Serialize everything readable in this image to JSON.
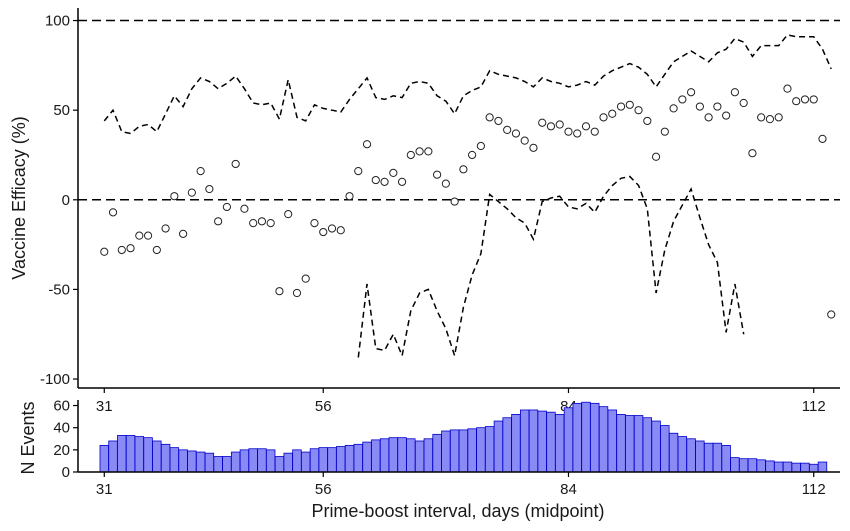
{
  "chart_data": [
    {
      "type": "scatter",
      "name": "vaccine-efficacy",
      "ylabel": "Vaccine Efficacy (%)",
      "xlim": [
        28,
        115
      ],
      "ylim": [
        -105,
        107
      ],
      "x_ticks": [
        31,
        56,
        84,
        112
      ],
      "y_ticks": [
        100,
        50,
        0,
        -50,
        -100
      ],
      "reference_lines": [
        100,
        0
      ],
      "points": [
        {
          "x": 31,
          "y": -29
        },
        {
          "x": 32,
          "y": -7
        },
        {
          "x": 33,
          "y": -28
        },
        {
          "x": 34,
          "y": -27
        },
        {
          "x": 35,
          "y": -20
        },
        {
          "x": 36,
          "y": -20
        },
        {
          "x": 37,
          "y": -28
        },
        {
          "x": 38,
          "y": -16
        },
        {
          "x": 39,
          "y": 2
        },
        {
          "x": 40,
          "y": -19
        },
        {
          "x": 41,
          "y": 4
        },
        {
          "x": 42,
          "y": 16
        },
        {
          "x": 43,
          "y": 6
        },
        {
          "x": 44,
          "y": -12
        },
        {
          "x": 45,
          "y": -4
        },
        {
          "x": 46,
          "y": 20
        },
        {
          "x": 47,
          "y": -5
        },
        {
          "x": 48,
          "y": -13
        },
        {
          "x": 49,
          "y": -12
        },
        {
          "x": 50,
          "y": -13
        },
        {
          "x": 51,
          "y": -51
        },
        {
          "x": 52,
          "y": -8
        },
        {
          "x": 53,
          "y": -52
        },
        {
          "x": 54,
          "y": -44
        },
        {
          "x": 55,
          "y": -13
        },
        {
          "x": 56,
          "y": -18
        },
        {
          "x": 57,
          "y": -16
        },
        {
          "x": 58,
          "y": -17
        },
        {
          "x": 59,
          "y": 2
        },
        {
          "x": 60,
          "y": 16
        },
        {
          "x": 61,
          "y": 31
        },
        {
          "x": 62,
          "y": 11
        },
        {
          "x": 63,
          "y": 10
        },
        {
          "x": 64,
          "y": 15
        },
        {
          "x": 65,
          "y": 10
        },
        {
          "x": 66,
          "y": 25
        },
        {
          "x": 67,
          "y": 27
        },
        {
          "x": 68,
          "y": 27
        },
        {
          "x": 69,
          "y": 14
        },
        {
          "x": 70,
          "y": 9
        },
        {
          "x": 71,
          "y": -1
        },
        {
          "x": 72,
          "y": 17
        },
        {
          "x": 73,
          "y": 25
        },
        {
          "x": 74,
          "y": 30
        },
        {
          "x": 75,
          "y": 46
        },
        {
          "x": 76,
          "y": 44
        },
        {
          "x": 77,
          "y": 39
        },
        {
          "x": 78,
          "y": 37
        },
        {
          "x": 79,
          "y": 33
        },
        {
          "x": 80,
          "y": 29
        },
        {
          "x": 81,
          "y": 43
        },
        {
          "x": 82,
          "y": 41
        },
        {
          "x": 83,
          "y": 42
        },
        {
          "x": 84,
          "y": 38
        },
        {
          "x": 85,
          "y": 37
        },
        {
          "x": 86,
          "y": 41
        },
        {
          "x": 87,
          "y": 38
        },
        {
          "x": 88,
          "y": 46
        },
        {
          "x": 89,
          "y": 48
        },
        {
          "x": 90,
          "y": 52
        },
        {
          "x": 91,
          "y": 53
        },
        {
          "x": 92,
          "y": 50
        },
        {
          "x": 93,
          "y": 44
        },
        {
          "x": 94,
          "y": 24
        },
        {
          "x": 95,
          "y": 38
        },
        {
          "x": 96,
          "y": 51
        },
        {
          "x": 97,
          "y": 56
        },
        {
          "x": 98,
          "y": 60
        },
        {
          "x": 99,
          "y": 52
        },
        {
          "x": 100,
          "y": 46
        },
        {
          "x": 101,
          "y": 52
        },
        {
          "x": 102,
          "y": 47
        },
        {
          "x": 103,
          "y": 60
        },
        {
          "x": 104,
          "y": 54
        },
        {
          "x": 105,
          "y": 26
        },
        {
          "x": 106,
          "y": 46
        },
        {
          "x": 107,
          "y": 45
        },
        {
          "x": 108,
          "y": 46
        },
        {
          "x": 109,
          "y": 62
        },
        {
          "x": 110,
          "y": 55
        },
        {
          "x": 111,
          "y": 56
        },
        {
          "x": 112,
          "y": 56
        },
        {
          "x": 113,
          "y": 34
        },
        {
          "x": 114,
          "y": -64
        }
      ],
      "upper_ci": [
        {
          "x": 31,
          "y": 44
        },
        {
          "x": 32,
          "y": 50
        },
        {
          "x": 33,
          "y": 38
        },
        {
          "x": 34,
          "y": 37
        },
        {
          "x": 35,
          "y": 41
        },
        {
          "x": 36,
          "y": 42
        },
        {
          "x": 37,
          "y": 38
        },
        {
          "x": 38,
          "y": 48
        },
        {
          "x": 39,
          "y": 58
        },
        {
          "x": 40,
          "y": 52
        },
        {
          "x": 41,
          "y": 62
        },
        {
          "x": 42,
          "y": 68
        },
        {
          "x": 43,
          "y": 66
        },
        {
          "x": 44,
          "y": 62
        },
        {
          "x": 45,
          "y": 65
        },
        {
          "x": 46,
          "y": 69
        },
        {
          "x": 47,
          "y": 62
        },
        {
          "x": 48,
          "y": 54
        },
        {
          "x": 49,
          "y": 53
        },
        {
          "x": 50,
          "y": 54
        },
        {
          "x": 51,
          "y": 45
        },
        {
          "x": 52,
          "y": 67
        },
        {
          "x": 53,
          "y": 46
        },
        {
          "x": 54,
          "y": 44
        },
        {
          "x": 55,
          "y": 53
        },
        {
          "x": 56,
          "y": 51
        },
        {
          "x": 57,
          "y": 50
        },
        {
          "x": 58,
          "y": 49
        },
        {
          "x": 59,
          "y": 56
        },
        {
          "x": 60,
          "y": 62
        },
        {
          "x": 61,
          "y": 68
        },
        {
          "x": 62,
          "y": 57
        },
        {
          "x": 63,
          "y": 56
        },
        {
          "x": 64,
          "y": 58
        },
        {
          "x": 65,
          "y": 57
        },
        {
          "x": 66,
          "y": 65
        },
        {
          "x": 67,
          "y": 66
        },
        {
          "x": 68,
          "y": 65
        },
        {
          "x": 69,
          "y": 58
        },
        {
          "x": 70,
          "y": 55
        },
        {
          "x": 71,
          "y": 48
        },
        {
          "x": 72,
          "y": 58
        },
        {
          "x": 73,
          "y": 61
        },
        {
          "x": 74,
          "y": 63
        },
        {
          "x": 75,
          "y": 72
        },
        {
          "x": 76,
          "y": 70
        },
        {
          "x": 77,
          "y": 69
        },
        {
          "x": 78,
          "y": 68
        },
        {
          "x": 79,
          "y": 66
        },
        {
          "x": 80,
          "y": 63
        },
        {
          "x": 81,
          "y": 68
        },
        {
          "x": 82,
          "y": 66
        },
        {
          "x": 83,
          "y": 65
        },
        {
          "x": 84,
          "y": 63
        },
        {
          "x": 85,
          "y": 64
        },
        {
          "x": 86,
          "y": 66
        },
        {
          "x": 87,
          "y": 64
        },
        {
          "x": 88,
          "y": 69
        },
        {
          "x": 89,
          "y": 72
        },
        {
          "x": 90,
          "y": 74
        },
        {
          "x": 91,
          "y": 76
        },
        {
          "x": 92,
          "y": 74
        },
        {
          "x": 93,
          "y": 70
        },
        {
          "x": 94,
          "y": 63
        },
        {
          "x": 95,
          "y": 70
        },
        {
          "x": 96,
          "y": 77
        },
        {
          "x": 97,
          "y": 80
        },
        {
          "x": 98,
          "y": 83
        },
        {
          "x": 99,
          "y": 80
        },
        {
          "x": 100,
          "y": 77
        },
        {
          "x": 101,
          "y": 82
        },
        {
          "x": 102,
          "y": 84
        },
        {
          "x": 103,
          "y": 90
        },
        {
          "x": 104,
          "y": 88
        },
        {
          "x": 105,
          "y": 80
        },
        {
          "x": 106,
          "y": 86
        },
        {
          "x": 107,
          "y": 86
        },
        {
          "x": 108,
          "y": 86
        },
        {
          "x": 109,
          "y": 92
        },
        {
          "x": 110,
          "y": 91
        },
        {
          "x": 111,
          "y": 91
        },
        {
          "x": 112,
          "y": 91
        },
        {
          "x": 113,
          "y": 84
        },
        {
          "x": 114,
          "y": 73
        }
      ],
      "lower_ci": [
        {
          "x": 60,
          "y": -88
        },
        {
          "x": 61,
          "y": -47
        },
        {
          "x": 62,
          "y": -83
        },
        {
          "x": 63,
          "y": -84
        },
        {
          "x": 64,
          "y": -75
        },
        {
          "x": 65,
          "y": -87
        },
        {
          "x": 66,
          "y": -62
        },
        {
          "x": 67,
          "y": -52
        },
        {
          "x": 68,
          "y": -50
        },
        {
          "x": 69,
          "y": -62
        },
        {
          "x": 70,
          "y": -72
        },
        {
          "x": 71,
          "y": -87
        },
        {
          "x": 72,
          "y": -60
        },
        {
          "x": 73,
          "y": -42
        },
        {
          "x": 74,
          "y": -30
        },
        {
          "x": 75,
          "y": 3
        },
        {
          "x": 76,
          "y": -1
        },
        {
          "x": 77,
          "y": -5
        },
        {
          "x": 78,
          "y": -10
        },
        {
          "x": 79,
          "y": -13
        },
        {
          "x": 80,
          "y": -22
        },
        {
          "x": 81,
          "y": -1
        },
        {
          "x": 82,
          "y": 1
        },
        {
          "x": 83,
          "y": 2
        },
        {
          "x": 84,
          "y": -4
        },
        {
          "x": 85,
          "y": -5
        },
        {
          "x": 86,
          "y": -2
        },
        {
          "x": 87,
          "y": -7
        },
        {
          "x": 88,
          "y": 2
        },
        {
          "x": 89,
          "y": 8
        },
        {
          "x": 90,
          "y": 12
        },
        {
          "x": 91,
          "y": 13
        },
        {
          "x": 92,
          "y": 8
        },
        {
          "x": 93,
          "y": -5
        },
        {
          "x": 94,
          "y": -52
        },
        {
          "x": 95,
          "y": -28
        },
        {
          "x": 96,
          "y": -12
        },
        {
          "x": 97,
          "y": -3
        },
        {
          "x": 98,
          "y": 6
        },
        {
          "x": 99,
          "y": -10
        },
        {
          "x": 100,
          "y": -25
        },
        {
          "x": 101,
          "y": -35
        },
        {
          "x": 102,
          "y": -74
        },
        {
          "x": 103,
          "y": -47
        },
        {
          "x": 104,
          "y": -75
        }
      ]
    },
    {
      "type": "bar",
      "name": "n-events",
      "ylabel": "N Events",
      "xlabel": "Prime-boost interval, days (midpoint)",
      "xlim": [
        28,
        115
      ],
      "ylim": [
        0,
        65
      ],
      "x_ticks": [
        31,
        56,
        84,
        112
      ],
      "y_ticks": [
        0,
        20,
        40,
        60
      ],
      "bar_color": "#8a8af5",
      "bar_edge_color": "#0000cc",
      "categories": [
        31,
        32,
        33,
        34,
        35,
        36,
        37,
        38,
        39,
        40,
        41,
        42,
        43,
        44,
        45,
        46,
        47,
        48,
        49,
        50,
        51,
        52,
        53,
        54,
        55,
        56,
        57,
        58,
        59,
        60,
        61,
        62,
        63,
        64,
        65,
        66,
        67,
        68,
        69,
        70,
        71,
        72,
        73,
        74,
        75,
        76,
        77,
        78,
        79,
        80,
        81,
        82,
        83,
        84,
        85,
        86,
        87,
        88,
        89,
        90,
        91,
        92,
        93,
        94,
        95,
        96,
        97,
        98,
        99,
        100,
        101,
        102,
        103,
        104,
        105,
        106,
        107,
        108,
        109,
        110,
        111,
        112,
        113
      ],
      "values": [
        24,
        28,
        33,
        33,
        32,
        31,
        28,
        25,
        22,
        20,
        19,
        18,
        17,
        14,
        14,
        18,
        20,
        21,
        21,
        20,
        14,
        17,
        20,
        18,
        21,
        22,
        22,
        23,
        24,
        25,
        27,
        29,
        30,
        31,
        31,
        30,
        28,
        30,
        34,
        37,
        38,
        38,
        39,
        40,
        41,
        46,
        49,
        52,
        56,
        56,
        55,
        54,
        52,
        58,
        62,
        63,
        62,
        59,
        56,
        52,
        51,
        51,
        49,
        46,
        42,
        35,
        32,
        30,
        28,
        26,
        26,
        24,
        13,
        12,
        12,
        11,
        10,
        9,
        9,
        8,
        8,
        7,
        9
      ]
    }
  ]
}
